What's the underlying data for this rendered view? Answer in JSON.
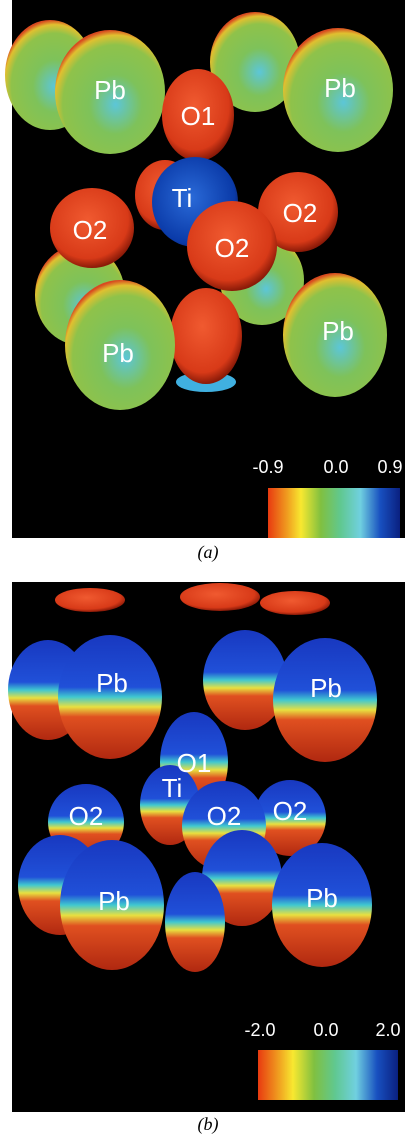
{
  "panels": [
    {
      "labels": [
        "Pb",
        "Pb",
        "O1",
        "Ti",
        "O2",
        "O2",
        "O2",
        "Pb",
        "Pb"
      ],
      "colorbar_ticks": [
        "-0.9",
        "0.0",
        "0.9"
      ],
      "caption": "(a)"
    },
    {
      "labels": [
        "Pb",
        "Pb",
        "O1",
        "Ti",
        "O2",
        "O2",
        "O2",
        "Pb",
        "Pb"
      ],
      "colorbar_ticks": [
        "-2.0",
        "0.0",
        "2.0"
      ],
      "caption": "(b)"
    }
  ]
}
